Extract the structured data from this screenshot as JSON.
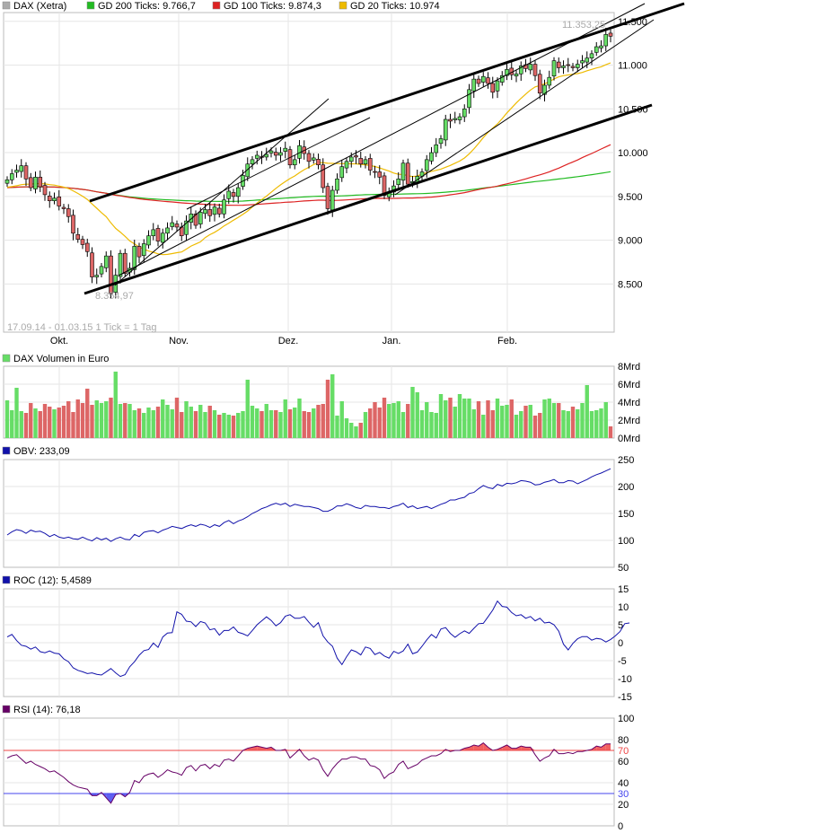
{
  "colors": {
    "up": "#66dd66",
    "down": "#dd6666",
    "sma200": "#22bb22",
    "sma100": "#dd2222",
    "sma20": "#eebb00",
    "indicator": "#1111aa",
    "rsi_line": "#660066",
    "grid": "#e6e6e6",
    "axis_text": "#000000",
    "muted": "#aaaaaa",
    "rsi_upper": "#ee4444",
    "rsi_lower": "#4444ee"
  },
  "header": {
    "instrument": "DAX (Xetra)",
    "sma200_label": "GD 200 Ticks: 9.766,7",
    "sma100_label": "GD 100 Ticks: 9.874,3",
    "sma20_label": "GD 20 Ticks: 10.974"
  },
  "price_panel": {
    "high_label": "11.353,25",
    "low_label": "8.354,97",
    "info_label": "17.09.14 - 01.03.15   1 Tick = 1 Tag",
    "y_ticks": [
      "8.500",
      "9.000",
      "9.500",
      "10.000",
      "10.500",
      "11.000",
      "11.500"
    ],
    "x_ticks": [
      "Okt.",
      "Nov.",
      "Dez.",
      "Jan.",
      "Feb."
    ]
  },
  "volume_panel": {
    "title": "DAX Volumen in Euro",
    "y_ticks": [
      "0Mrd",
      "2Mrd",
      "4Mrd",
      "6Mrd",
      "8Mrd"
    ]
  },
  "obv_panel": {
    "title": "OBV: 233,09",
    "y_ticks": [
      "50",
      "100",
      "150",
      "200",
      "250"
    ]
  },
  "roc_panel": {
    "title": "ROC (12): 5,4589",
    "y_ticks": [
      "-15",
      "-10",
      "-5",
      "0",
      "5",
      "10",
      "15"
    ]
  },
  "rsi_panel": {
    "title": "RSI (14): 76,18",
    "y_ticks": [
      "0",
      "20",
      "40",
      "60",
      "80",
      "100"
    ],
    "upper_label": "70",
    "lower_label": "30"
  },
  "chart_data": [
    {
      "type": "candlestick",
      "title": "DAX (Xetra)",
      "x_range": [
        "17.09.14",
        "01.03.15"
      ],
      "ylim": [
        7950,
        11600
      ],
      "series": [
        {
          "name": "GD 200 Ticks: 9.766,7",
          "kind": "sma"
        },
        {
          "name": "GD 100 Ticks: 9.874,3",
          "kind": "sma"
        },
        {
          "name": "GD 20 Ticks: 10.974",
          "kind": "sma"
        }
      ],
      "close": [
        9690,
        9760,
        9800,
        9850,
        9700,
        9600,
        9720,
        9610,
        9520,
        9450,
        9480,
        9390,
        9360,
        9270,
        9080,
        9010,
        8950,
        8870,
        8580,
        8600,
        8700,
        8820,
        8390,
        8600,
        8850,
        8620,
        8680,
        8930,
        8810,
        8960,
        9050,
        9120,
        8990,
        9080,
        9140,
        9200,
        9150,
        9050,
        9220,
        9300,
        9170,
        9320,
        9350,
        9280,
        9380,
        9300,
        9460,
        9560,
        9500,
        9600,
        9740,
        9870,
        9920,
        9970,
        9950,
        9980,
        10020,
        9970,
        10000,
        10050,
        9860,
        9920,
        10080,
        9990,
        9900,
        9940,
        9860,
        9600,
        9360,
        9570,
        9700,
        9840,
        9900,
        9950,
        9950,
        9870,
        9920,
        9800,
        9780,
        9720,
        9510,
        9550,
        9620,
        9700,
        9880,
        9640,
        9670,
        9730,
        9780,
        9920,
        10000,
        10090,
        10160,
        10380,
        10360,
        10390,
        10410,
        10500,
        10720,
        10840,
        10790,
        10870,
        10790,
        10690,
        10820,
        10880,
        10950,
        10890,
        10900,
        10990,
        10960,
        11010,
        10880,
        10680,
        10770,
        10860,
        11050,
        10970,
        10990,
        11000,
        10970,
        11010,
        11050,
        11080,
        11130,
        11210,
        11220,
        11350,
        11330
      ],
      "volume_mrd": [
        4.2,
        3.1,
        5.6,
        3.0,
        2.8,
        3.9,
        3.3,
        3.0,
        3.8,
        3.5,
        3.2,
        3.4,
        3.6,
        4.1,
        2.9,
        4.3,
        3.9,
        5.5,
        3.7,
        4.2,
        3.9,
        4.1,
        4.5,
        7.4,
        3.8,
        3.9,
        3.8,
        3.1,
        3.3,
        2.8,
        3.4,
        3.1,
        3.5,
        4.3,
        3.7,
        3.2,
        4.5,
        2.9,
        4.1,
        3.5,
        3.0,
        3.7,
        2.9,
        3.6,
        3.1,
        2.6,
        2.8,
        2.6,
        2.5,
        2.8,
        3.0,
        6.5,
        3.6,
        3.3,
        3.0,
        3.8,
        3.1,
        3.1,
        2.9,
        4.3,
        3.2,
        3.4,
        4.4,
        3.0,
        2.9,
        3.3,
        3.7,
        3.8,
        6.5,
        7.1,
        2.5,
        4.1,
        2.2,
        1.7,
        1.3,
        1.7,
        2.9,
        3.3,
        4.0,
        3.4,
        4.5,
        3.8,
        3.9,
        4.1,
        2.9,
        3.8,
        5.7,
        5.1,
        3.1,
        4.0,
        2.9,
        2.8,
        4.9,
        4.2,
        4.5,
        3.5,
        4.9,
        4.4,
        4.4,
        3.2,
        4.1,
        2.6,
        4.2,
        3.1,
        4.4,
        3.6,
        3.7,
        4.3,
        2.6,
        3.0,
        3.6,
        3.7,
        2.5,
        2.8,
        4.3,
        4.4,
        3.9,
        3.9,
        3.1,
        3.0,
        3.5,
        3.2,
        3.9,
        5.9,
        3.0,
        3.1,
        3.3,
        4.0,
        1.3
      ],
      "volume_unit": "Mrd"
    },
    {
      "type": "line",
      "title": "OBV: 233,09",
      "ylim": [
        50,
        250
      ],
      "values": [
        110,
        116,
        120,
        118,
        113,
        119,
        116,
        117,
        113,
        107,
        111,
        106,
        104,
        106,
        103,
        102,
        106,
        102,
        99,
        105,
        101,
        104,
        98,
        103,
        106,
        102,
        101,
        111,
        107,
        115,
        117,
        118,
        114,
        119,
        122,
        126,
        124,
        122,
        126,
        129,
        126,
        130,
        128,
        124,
        129,
        126,
        133,
        137,
        131,
        136,
        139,
        144,
        150,
        154,
        159,
        162,
        166,
        169,
        166,
        169,
        163,
        167,
        165,
        163,
        163,
        161,
        159,
        154,
        154,
        158,
        164,
        164,
        168,
        165,
        161,
        159,
        165,
        163,
        163,
        161,
        161,
        159,
        163,
        165,
        169,
        161,
        164,
        159,
        161,
        163,
        159,
        163,
        167,
        170,
        175,
        175,
        178,
        180,
        187,
        189,
        196,
        202,
        198,
        196,
        204,
        201,
        206,
        205,
        207,
        211,
        210,
        208,
        203,
        204,
        208,
        210,
        213,
        207,
        207,
        211,
        210,
        205,
        209,
        213,
        218,
        222,
        225,
        229,
        233
      ]
    },
    {
      "type": "line",
      "title": "ROC (12): 5,4589",
      "ylim": [
        -15,
        15
      ],
      "values": [
        1.6,
        2.3,
        0.6,
        -0.7,
        -1.0,
        -1.8,
        -1.2,
        -2.5,
        -2.8,
        -2.3,
        -2.9,
        -3.1,
        -4.5,
        -5.3,
        -7.0,
        -7.7,
        -8.1,
        -8.6,
        -8.4,
        -8.8,
        -9.0,
        -8.1,
        -7.2,
        -8.4,
        -9.4,
        -8.9,
        -6.7,
        -5.3,
        -3.5,
        -2.2,
        -1.9,
        -0.1,
        -1.3,
        1.6,
        2.7,
        2.8,
        8.6,
        7.9,
        6.0,
        5.8,
        4.5,
        5.9,
        5.5,
        3.6,
        3.9,
        2.1,
        3.4,
        3.4,
        4.4,
        2.9,
        2.5,
        1.9,
        3.4,
        5.0,
        6.1,
        7.2,
        6.2,
        4.7,
        5.6,
        7.4,
        7.8,
        6.8,
        6.8,
        7.3,
        5.7,
        4.3,
        5.6,
        1.9,
        0.2,
        -1.0,
        -4.3,
        -6.1,
        -3.9,
        -2.0,
        -2.5,
        -3.4,
        -1.2,
        -1.6,
        -3.3,
        -2.7,
        -3.7,
        -4.3,
        -2.4,
        -3.0,
        -2.3,
        -0.4,
        -3.1,
        -2.6,
        -1.0,
        0.8,
        2.3,
        1.3,
        3.8,
        4.2,
        2.6,
        1.5,
        2.5,
        3.3,
        2.6,
        4.0,
        5.3,
        5.4,
        7.2,
        9.1,
        11.6,
        10.1,
        9.9,
        8.4,
        7.5,
        7.8,
        6.8,
        7.3,
        6.1,
        6.8,
        5.5,
        5.7,
        5.0,
        3.2,
        -0.4,
        -2.0,
        -0.2,
        1.1,
        1.7,
        1.7,
        0.7,
        1.2,
        1.0,
        0.2,
        0.9,
        1.9,
        3.1,
        5.3,
        5.5
      ]
    },
    {
      "type": "line",
      "title": "RSI (14): 76,18",
      "ylim": [
        0,
        100
      ],
      "thresholds": [
        30,
        70
      ],
      "values": [
        63,
        65,
        66,
        62,
        58,
        60,
        57,
        55,
        53,
        50,
        51,
        48,
        45,
        41,
        38,
        36,
        35,
        34,
        28,
        28,
        31,
        26,
        21,
        29,
        30,
        27,
        31,
        42,
        40,
        46,
        48,
        49,
        45,
        48,
        52,
        50,
        49,
        47,
        54,
        56,
        51,
        56,
        57,
        53,
        57,
        55,
        61,
        62,
        60,
        65,
        70,
        72,
        73,
        74,
        73,
        72,
        73,
        70,
        70,
        71,
        63,
        67,
        71,
        65,
        61,
        63,
        61,
        52,
        46,
        53,
        58,
        62,
        62,
        64,
        64,
        62,
        62,
        56,
        55,
        52,
        44,
        48,
        50,
        57,
        60,
        53,
        55,
        57,
        61,
        63,
        65,
        65,
        67,
        71,
        69,
        70,
        70,
        72,
        73,
        75,
        74,
        77,
        73,
        70,
        71,
        73,
        75,
        72,
        72,
        74,
        73,
        73,
        66,
        60,
        63,
        65,
        71,
        67,
        67,
        68,
        67,
        69,
        69,
        70,
        71,
        74,
        73,
        76,
        76
      ]
    }
  ]
}
